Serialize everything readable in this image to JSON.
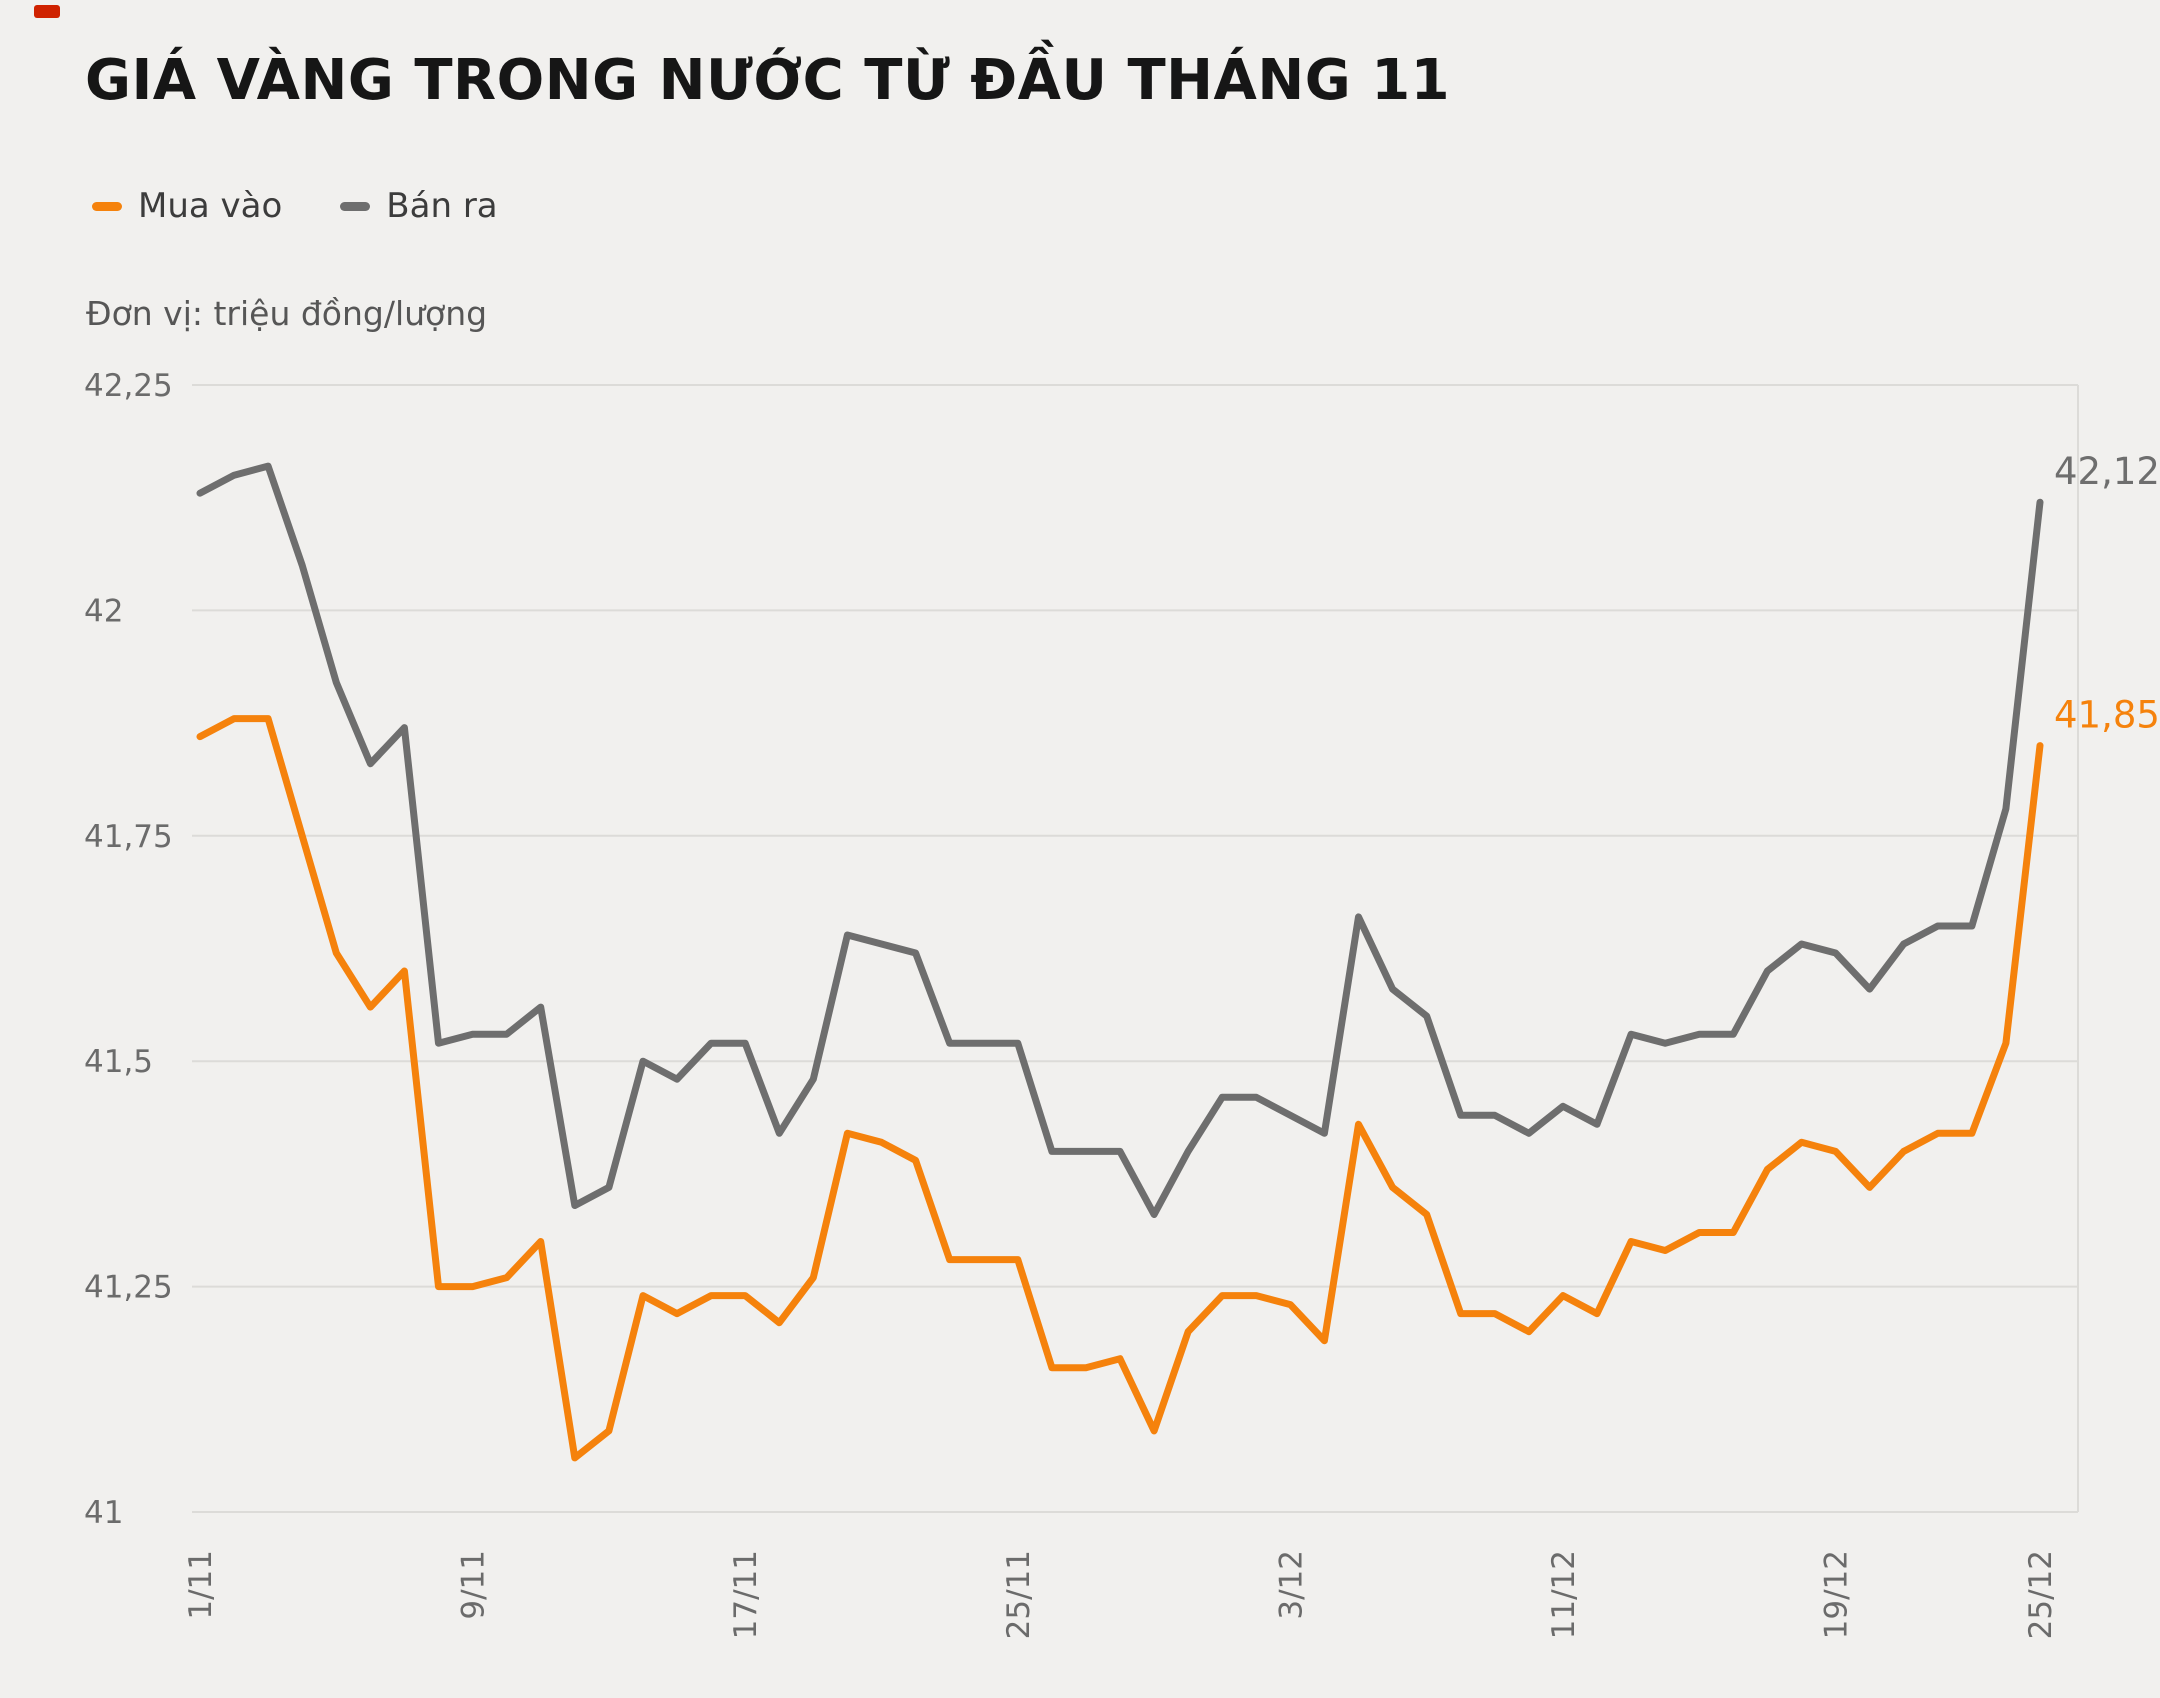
{
  "chart_data": {
    "type": "line",
    "title": "GIÁ VÀNG TRONG NƯỚC TỪ ĐẦU THÁNG 11",
    "unit": "Đơn vị: triệu đồng/lượng",
    "legend_position": "top-left",
    "grid": "horizontal",
    "x_label_rotation": -90,
    "ylim": [
      41,
      42.25
    ],
    "x": [
      "1/11",
      "2/11",
      "3/11",
      "4/11",
      "5/11",
      "6/11",
      "7/11",
      "8/11",
      "9/11",
      "10/11",
      "11/11",
      "12/11",
      "13/11",
      "14/11",
      "15/11",
      "16/11",
      "17/11",
      "18/11",
      "19/11",
      "20/11",
      "21/11",
      "22/11",
      "23/11",
      "24/11",
      "25/11",
      "26/11",
      "27/11",
      "28/11",
      "29/11",
      "30/11",
      "1/12",
      "2/12",
      "3/12",
      "4/12",
      "5/12",
      "6/12",
      "7/12",
      "8/12",
      "9/12",
      "10/12",
      "11/12",
      "12/12",
      "13/12",
      "14/12",
      "15/12",
      "16/12",
      "17/12",
      "18/12",
      "19/12",
      "20/12",
      "21/12",
      "22/12",
      "23/12",
      "24/12",
      "25/12"
    ],
    "series": [
      {
        "name": "Mua vào",
        "color": "#f5820c",
        "values": [
          41.86,
          41.88,
          41.88,
          41.75,
          41.62,
          41.56,
          41.6,
          41.25,
          41.25,
          41.26,
          41.3,
          41.06,
          41.09,
          41.24,
          41.22,
          41.24,
          41.24,
          41.21,
          41.26,
          41.42,
          41.41,
          41.39,
          41.28,
          41.28,
          41.28,
          41.16,
          41.16,
          41.17,
          41.09,
          41.2,
          41.24,
          41.24,
          41.23,
          41.19,
          41.43,
          41.36,
          41.33,
          41.22,
          41.22,
          41.2,
          41.24,
          41.22,
          41.3,
          41.29,
          41.31,
          41.31,
          41.38,
          41.41,
          41.4,
          41.36,
          41.4,
          41.42,
          41.42,
          41.52,
          41.85
        ]
      },
      {
        "name": "Bán ra",
        "color": "#6e6e6e",
        "values": [
          42.13,
          42.15,
          42.16,
          42.05,
          41.92,
          41.83,
          41.87,
          41.52,
          41.53,
          41.53,
          41.56,
          41.34,
          41.36,
          41.5,
          41.48,
          41.52,
          41.52,
          41.42,
          41.48,
          41.64,
          41.63,
          41.62,
          41.52,
          41.52,
          41.52,
          41.4,
          41.4,
          41.4,
          41.33,
          41.4,
          41.46,
          41.46,
          41.44,
          41.42,
          41.66,
          41.58,
          41.55,
          41.44,
          41.44,
          41.42,
          41.45,
          41.43,
          41.53,
          41.52,
          41.53,
          41.53,
          41.6,
          41.63,
          41.62,
          41.58,
          41.63,
          41.65,
          41.65,
          41.78,
          42.12
        ]
      }
    ],
    "y_ticks": [
      {
        "value": 41,
        "label": "41"
      },
      {
        "value": 41.25,
        "label": "41,25"
      },
      {
        "value": 41.5,
        "label": "41,5"
      },
      {
        "value": 41.75,
        "label": "41,75"
      },
      {
        "value": 42,
        "label": "42"
      },
      {
        "value": 42.25,
        "label": "42,25"
      }
    ],
    "x_ticks": [
      {
        "index": 0,
        "label": "1/11"
      },
      {
        "index": 8,
        "label": "9/11"
      },
      {
        "index": 16,
        "label": "17/11"
      },
      {
        "index": 24,
        "label": "25/11"
      },
      {
        "index": 32,
        "label": "3/12"
      },
      {
        "index": 40,
        "label": "11/12"
      },
      {
        "index": 48,
        "label": "19/12"
      },
      {
        "index": 54,
        "label": "25/12"
      }
    ],
    "end_labels": [
      {
        "series": "Bán ra",
        "text": "42,12",
        "value": 42.12
      },
      {
        "series": "Mua vào",
        "text": "41,85",
        "value": 41.85
      }
    ]
  }
}
